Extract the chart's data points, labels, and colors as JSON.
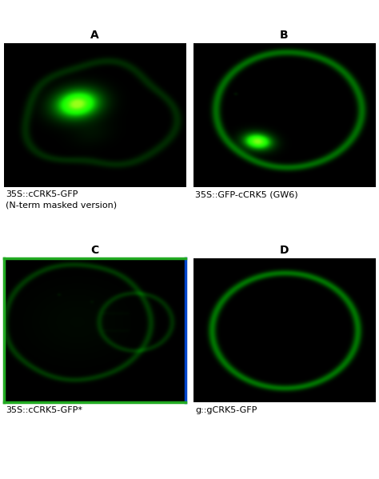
{
  "panel_labels": [
    "A",
    "B",
    "C",
    "D"
  ],
  "panel_captions": [
    "35S::cCRK5-GFP\n(N-term masked version)",
    "35S::GFP-cCRK5 (GW6)",
    "35S::cCRK5-GFP*",
    "g::gCRK5-GFP"
  ],
  "background_color": "#ffffff",
  "panel_bg": "#000000",
  "label_fontsize": 10,
  "caption_fontsize": 8,
  "label_bold": true,
  "border_C_colors": [
    "#00aa00",
    "#0055ff"
  ]
}
